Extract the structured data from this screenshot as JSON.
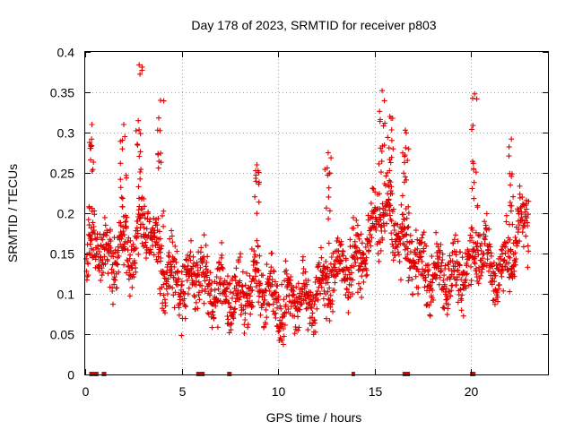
{
  "chart_data": {
    "type": "scatter",
    "title": "Day 178 of 2023, SRMTID for receiver p803",
    "xlabel": "GPS time / hours",
    "ylabel": "SRMTID / TECUs",
    "xlim": [
      0,
      24
    ],
    "ylim": [
      0,
      0.4
    ],
    "xticks": [
      0,
      5,
      10,
      15,
      20
    ],
    "xtick_labels": [
      "0",
      "5",
      "10",
      "15",
      "20"
    ],
    "yticks": [
      0,
      0.05,
      0.1,
      0.15,
      0.2,
      0.25,
      0.3,
      0.35,
      0.4
    ],
    "ytick_labels": [
      "0",
      "0.05",
      "0.1",
      "0.15",
      "0.2",
      "0.25",
      "0.3",
      "0.35",
      "0.4"
    ],
    "grid": true,
    "marker": "plus",
    "color": "#e00000",
    "mean_profile": {
      "x": [
        0,
        0.5,
        1,
        1.5,
        2,
        2.5,
        3,
        3.5,
        4,
        4.5,
        5,
        5.5,
        6,
        6.5,
        7,
        7.5,
        8,
        8.5,
        9,
        9.5,
        10,
        10.5,
        11,
        11.5,
        12,
        12.5,
        13,
        13.5,
        14,
        14.5,
        15,
        15.5,
        16,
        16.5,
        17,
        17.5,
        18,
        18.5,
        19,
        19.5,
        20,
        20.5,
        21,
        21.5,
        22,
        22.5,
        23
      ],
      "y": [
        0.13,
        0.17,
        0.14,
        0.15,
        0.16,
        0.15,
        0.19,
        0.17,
        0.13,
        0.12,
        0.11,
        0.12,
        0.13,
        0.1,
        0.11,
        0.09,
        0.1,
        0.1,
        0.12,
        0.1,
        0.09,
        0.09,
        0.1,
        0.09,
        0.1,
        0.11,
        0.13,
        0.13,
        0.14,
        0.15,
        0.19,
        0.2,
        0.19,
        0.16,
        0.15,
        0.13,
        0.12,
        0.13,
        0.12,
        0.12,
        0.14,
        0.17,
        0.13,
        0.13,
        0.14,
        0.18,
        0.2
      ]
    },
    "peaks": [
      {
        "x": 0.35,
        "y": 0.31
      },
      {
        "x": 2.0,
        "y": 0.31
      },
      {
        "x": 2.8,
        "y": 0.384
      },
      {
        "x": 3.9,
        "y": 0.34
      },
      {
        "x": 8.9,
        "y": 0.26
      },
      {
        "x": 12.6,
        "y": 0.275
      },
      {
        "x": 15.4,
        "y": 0.352
      },
      {
        "x": 15.8,
        "y": 0.32
      },
      {
        "x": 16.6,
        "y": 0.303
      },
      {
        "x": 20.2,
        "y": 0.348
      },
      {
        "x": 22.1,
        "y": 0.292
      }
    ],
    "data_gaps_x": [
      0.3,
      0.35,
      0.5,
      0.6,
      0.95,
      1.0,
      5.85,
      5.95,
      6.0,
      6.1,
      7.45,
      7.5,
      13.9,
      16.55,
      16.65,
      16.75,
      20.05,
      20.15
    ]
  }
}
